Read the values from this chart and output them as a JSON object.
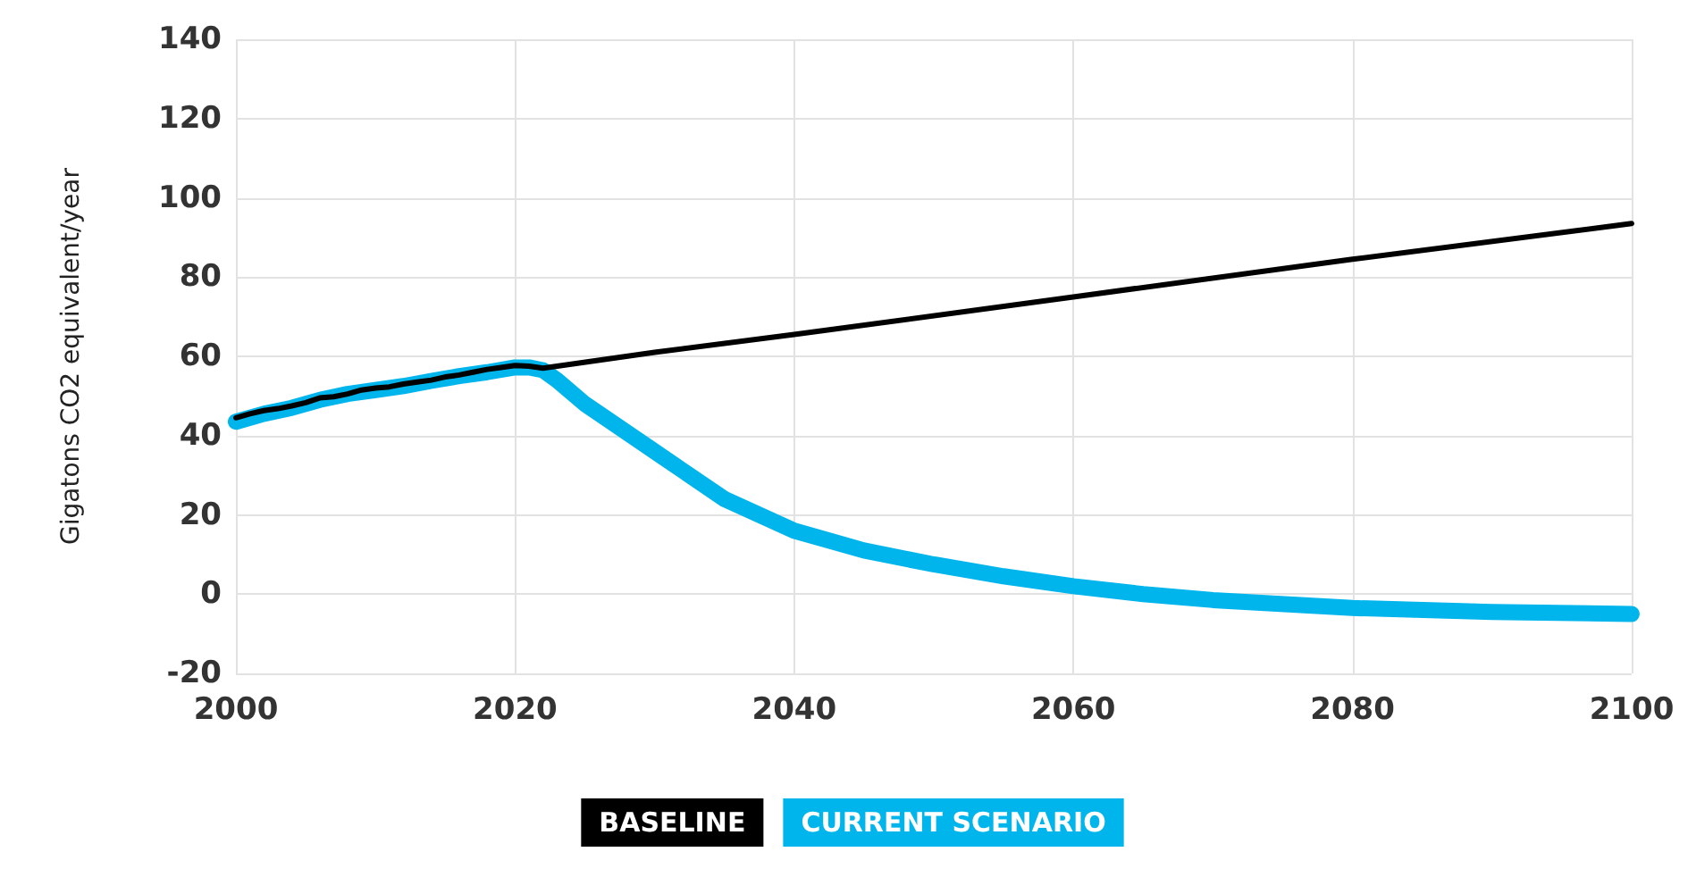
{
  "chart_data": {
    "type": "line",
    "ylabel": "Gigatons CO2 equivalent/year",
    "xlim": [
      2000,
      2100
    ],
    "xticks": [
      2000,
      2020,
      2040,
      2060,
      2080,
      2100
    ],
    "ylim": [
      -20,
      140
    ],
    "yticks": [
      -20,
      0,
      20,
      40,
      60,
      80,
      100,
      120,
      140
    ],
    "grid": true,
    "legend": "bottom",
    "marker": "none",
    "line_style": "solid",
    "series": [
      {
        "name": "BASELINE",
        "color": "#000000",
        "x": [
          2000,
          2001,
          2002,
          2003,
          2004,
          2005,
          2006,
          2007,
          2008,
          2009,
          2010,
          2011,
          2012,
          2013,
          2014,
          2015,
          2016,
          2017,
          2018,
          2019,
          2020,
          2021,
          2022,
          2030,
          2040,
          2060,
          2080,
          2100
        ],
        "values": [
          44.5,
          45.5,
          46.3,
          46.8,
          47.5,
          48.3,
          49.5,
          49.8,
          50.5,
          51.5,
          52,
          52.3,
          53,
          53.5,
          54,
          54.8,
          55.3,
          56,
          56.7,
          57.2,
          57.7,
          57.5,
          57,
          61,
          65.5,
          75,
          84.5,
          93.5
        ]
      },
      {
        "name": "CURRENT SCENARIO",
        "color": "#00b5ec",
        "x": [
          2000,
          2002,
          2004,
          2006,
          2008,
          2010,
          2012,
          2014,
          2016,
          2018,
          2020,
          2021,
          2022,
          2023,
          2025,
          2030,
          2035,
          2040,
          2045,
          2050,
          2055,
          2060,
          2065,
          2070,
          2080,
          2090,
          2100
        ],
        "values": [
          43.5,
          45.5,
          47,
          49,
          50.5,
          51.5,
          52.5,
          53.8,
          55,
          56,
          57.2,
          57.2,
          56.5,
          54,
          48,
          36,
          24,
          16,
          11,
          7.5,
          4.5,
          2,
          0,
          -1.5,
          -3.5,
          -4.5,
          -5
        ]
      }
    ]
  }
}
